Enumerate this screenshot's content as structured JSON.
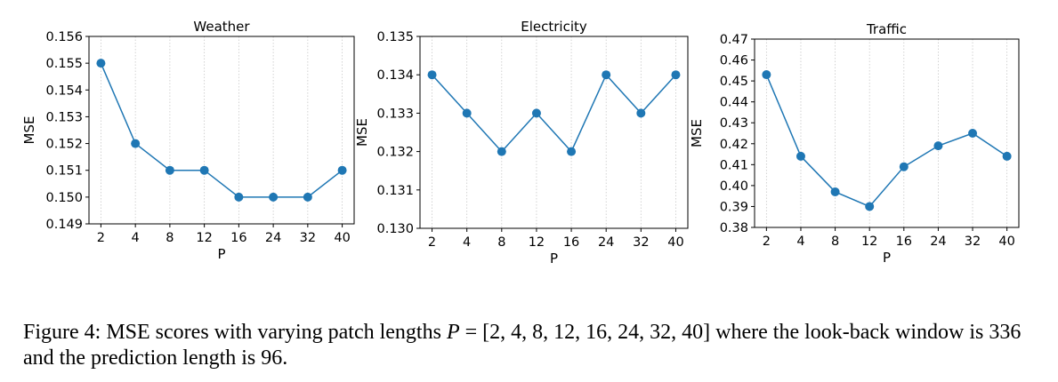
{
  "chart_data": [
    {
      "type": "line",
      "title": "Weather",
      "xlabel": "P",
      "ylabel": "MSE",
      "categories": [
        "2",
        "4",
        "8",
        "12",
        "16",
        "24",
        "32",
        "40"
      ],
      "values": [
        0.155,
        0.152,
        0.151,
        0.151,
        0.15,
        0.15,
        0.15,
        0.151
      ],
      "ylim": [
        0.149,
        0.156
      ],
      "yticks": [
        "0.149",
        "0.150",
        "0.151",
        "0.152",
        "0.153",
        "0.154",
        "0.155",
        "0.156"
      ],
      "grid": "vertical-dotted",
      "color": "#1f77b4"
    },
    {
      "type": "line",
      "title": "Electricity",
      "xlabel": "P",
      "ylabel": "MSE",
      "categories": [
        "2",
        "4",
        "8",
        "12",
        "16",
        "24",
        "32",
        "40"
      ],
      "values": [
        0.134,
        0.133,
        0.132,
        0.133,
        0.132,
        0.134,
        0.133,
        0.134
      ],
      "ylim": [
        0.13,
        0.135
      ],
      "yticks": [
        "0.130",
        "0.131",
        "0.132",
        "0.133",
        "0.134",
        "0.135"
      ],
      "grid": "vertical-dotted",
      "color": "#1f77b4"
    },
    {
      "type": "line",
      "title": "Traffic",
      "xlabel": "P",
      "ylabel": "MSE",
      "categories": [
        "2",
        "4",
        "8",
        "12",
        "16",
        "24",
        "32",
        "40"
      ],
      "values": [
        0.453,
        0.414,
        0.397,
        0.39,
        0.409,
        0.419,
        0.425,
        0.414
      ],
      "ylim": [
        0.38,
        0.47
      ],
      "yticks": [
        "0.38",
        "0.39",
        "0.40",
        "0.41",
        "0.42",
        "0.43",
        "0.44",
        "0.45",
        "0.46",
        "0.47"
      ],
      "grid": "vertical-dotted",
      "color": "#1f77b4"
    }
  ],
  "caption": {
    "prefix": "Figure 4: MSE scores with varying patch lengths ",
    "var": "P",
    "equation": " = [2, 4, 8, 12, 16, 24, 32, 40] ",
    "suffix": "where the look-back window is 336 and the prediction length is 96."
  }
}
